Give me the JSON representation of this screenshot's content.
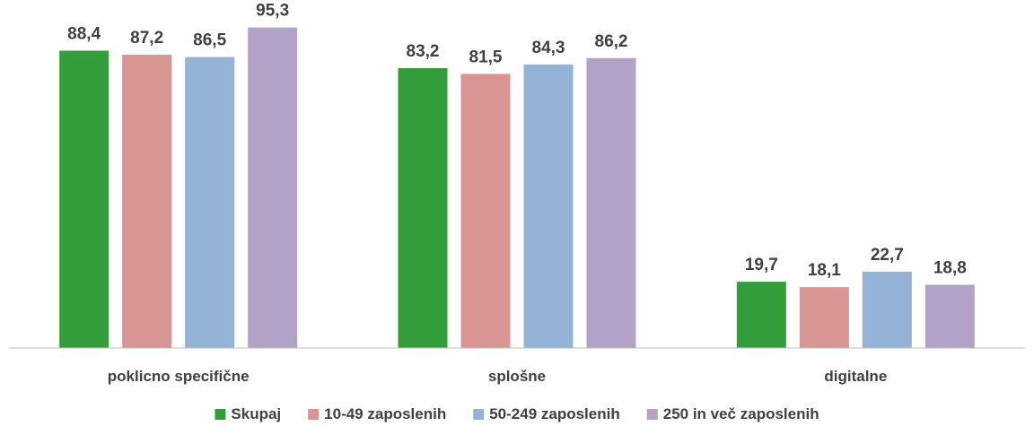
{
  "chart_data": {
    "type": "bar",
    "categories": [
      "poklicno specifične",
      "splošne",
      "digitalne"
    ],
    "series": [
      {
        "name": "Skupaj",
        "color": "#339E39",
        "values": [
          88.4,
          83.2,
          19.7
        ],
        "labels": [
          "88,4",
          "83,2",
          "19,7"
        ]
      },
      {
        "name": "10-49 zaposlenih",
        "color": "#D99594",
        "values": [
          87.2,
          81.5,
          18.1
        ],
        "labels": [
          "87,2",
          "81,5",
          "18,1"
        ]
      },
      {
        "name": "50-249 zaposlenih",
        "color": "#95B3D7",
        "values": [
          86.5,
          84.3,
          22.7
        ],
        "labels": [
          "86,5",
          "84,3",
          "22,7"
        ]
      },
      {
        "name": "250 in več zaposlenih",
        "color": "#B2A2C7",
        "values": [
          95.3,
          86.2,
          18.8
        ],
        "labels": [
          "95,3",
          "86,2",
          "18,8"
        ]
      }
    ],
    "ylim": [
      0,
      100
    ],
    "grid": false,
    "legend": "bottom",
    "axis_color": "#BFBFBF",
    "text_color": "#404040"
  }
}
